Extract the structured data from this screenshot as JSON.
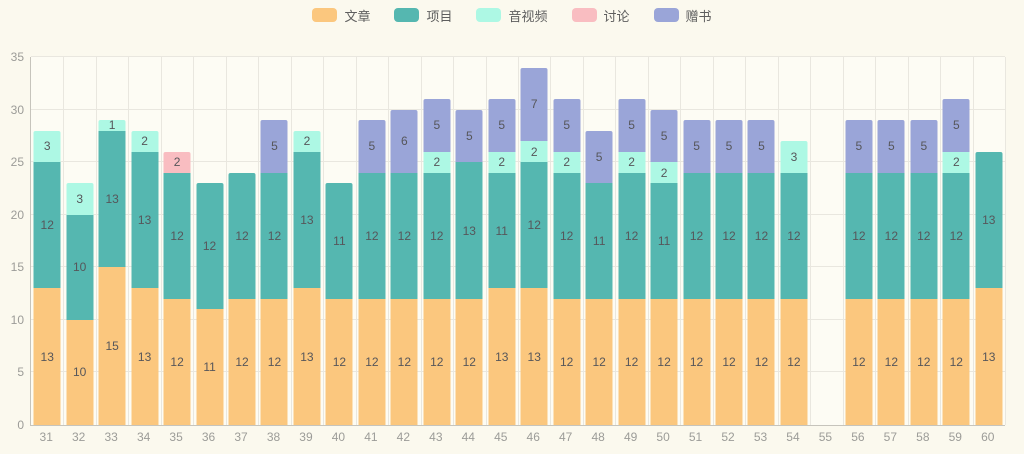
{
  "legend": {
    "items": [
      {
        "label": "文章",
        "color": "#fbc77e"
      },
      {
        "label": "项目",
        "color": "#55b7b0"
      },
      {
        "label": "音视频",
        "color": "#adf8e4"
      },
      {
        "label": "讨论",
        "color": "#f9bdc1"
      },
      {
        "label": "赠书",
        "color": "#9aa5d8"
      }
    ]
  },
  "chart_data": {
    "type": "bar",
    "stacked": true,
    "title": "",
    "xlabel": "",
    "ylabel": "",
    "categories": [
      31,
      32,
      33,
      34,
      35,
      36,
      37,
      38,
      39,
      40,
      41,
      42,
      43,
      44,
      45,
      46,
      47,
      48,
      49,
      50,
      51,
      52,
      53,
      54,
      55,
      56,
      57,
      58,
      59,
      60
    ],
    "series": [
      {
        "name": "文章",
        "color": "#fbc77e",
        "values": [
          13,
          10,
          15,
          13,
          12,
          11,
          12,
          12,
          13,
          12,
          12,
          12,
          12,
          12,
          13,
          13,
          12,
          12,
          12,
          12,
          12,
          12,
          12,
          12,
          0,
          12,
          12,
          12,
          12,
          13
        ]
      },
      {
        "name": "项目",
        "color": "#55b7b0",
        "values": [
          12,
          10,
          13,
          13,
          12,
          12,
          12,
          12,
          13,
          11,
          12,
          12,
          12,
          13,
          11,
          12,
          12,
          11,
          12,
          11,
          12,
          12,
          12,
          12,
          0,
          12,
          12,
          12,
          12,
          13
        ]
      },
      {
        "name": "音视频",
        "color": "#adf8e4",
        "values": [
          3,
          3,
          1,
          2,
          0,
          0,
          0,
          0,
          2,
          0,
          0,
          0,
          2,
          0,
          2,
          2,
          2,
          0,
          2,
          2,
          0,
          0,
          0,
          3,
          0,
          0,
          0,
          0,
          2,
          0
        ]
      },
      {
        "name": "讨论",
        "color": "#f9bdc1",
        "values": [
          0,
          0,
          0,
          0,
          2,
          0,
          0,
          0,
          0,
          0,
          0,
          0,
          0,
          0,
          0,
          0,
          0,
          0,
          0,
          0,
          0,
          0,
          0,
          0,
          0,
          0,
          0,
          0,
          0,
          0
        ]
      },
      {
        "name": "赠书",
        "color": "#9aa5d8",
        "values": [
          0,
          0,
          0,
          0,
          0,
          0,
          0,
          5,
          0,
          0,
          5,
          6,
          5,
          5,
          5,
          7,
          5,
          5,
          5,
          5,
          5,
          5,
          5,
          0,
          0,
          5,
          5,
          5,
          5,
          0
        ]
      }
    ],
    "ylim": [
      0,
      35
    ],
    "ytick_step": 5,
    "y_ticks": [
      0,
      5,
      10,
      15,
      20,
      25,
      30,
      35
    ],
    "grid": true,
    "legend_position": "top"
  },
  "colors": {
    "page_bg": "#fbf9ee",
    "plot_bg": "#fdfcf4",
    "gridline": "#e9e7df",
    "axis_line": "#c6c4bc",
    "tick_text": "#9c9c98",
    "value_text": "#56565a",
    "legend_text": "#5e5e5e"
  }
}
